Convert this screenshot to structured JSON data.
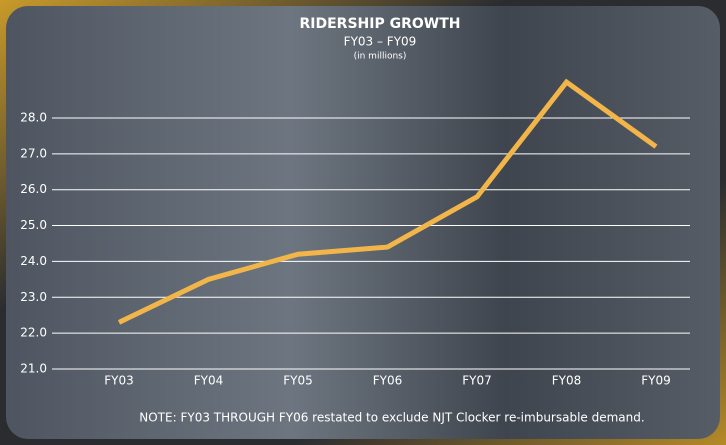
{
  "chart_data": {
    "type": "line",
    "title": "RIDERSHIP GROWTH",
    "subtitle": "FY03 – FY09",
    "unit_note": "(in millions)",
    "note": "NOTE: FY03 THROUGH FY06 restated to exclude NJT Clocker re-imbursable demand.",
    "categories": [
      "FY03",
      "FY04",
      "FY05",
      "FY06",
      "FY07",
      "FY08",
      "FY09"
    ],
    "series": [
      {
        "name": "Ridership",
        "color": "#f2b54a",
        "values": [
          22.3,
          23.5,
          24.2,
          24.4,
          25.8,
          29.0,
          27.2
        ]
      }
    ],
    "ylim": [
      21,
      29
    ],
    "yticks": [
      {
        "value": 21,
        "label": "21.0"
      },
      {
        "value": 22,
        "label": "22.0"
      },
      {
        "value": 23,
        "label": "23.0"
      },
      {
        "value": 24,
        "label": "24.0"
      },
      {
        "value": 25,
        "label": "25.0"
      },
      {
        "value": 26,
        "label": "26.0"
      },
      {
        "value": 27,
        "label": "27.0"
      },
      {
        "value": 28,
        "label": "28.0"
      }
    ],
    "grid": true
  }
}
